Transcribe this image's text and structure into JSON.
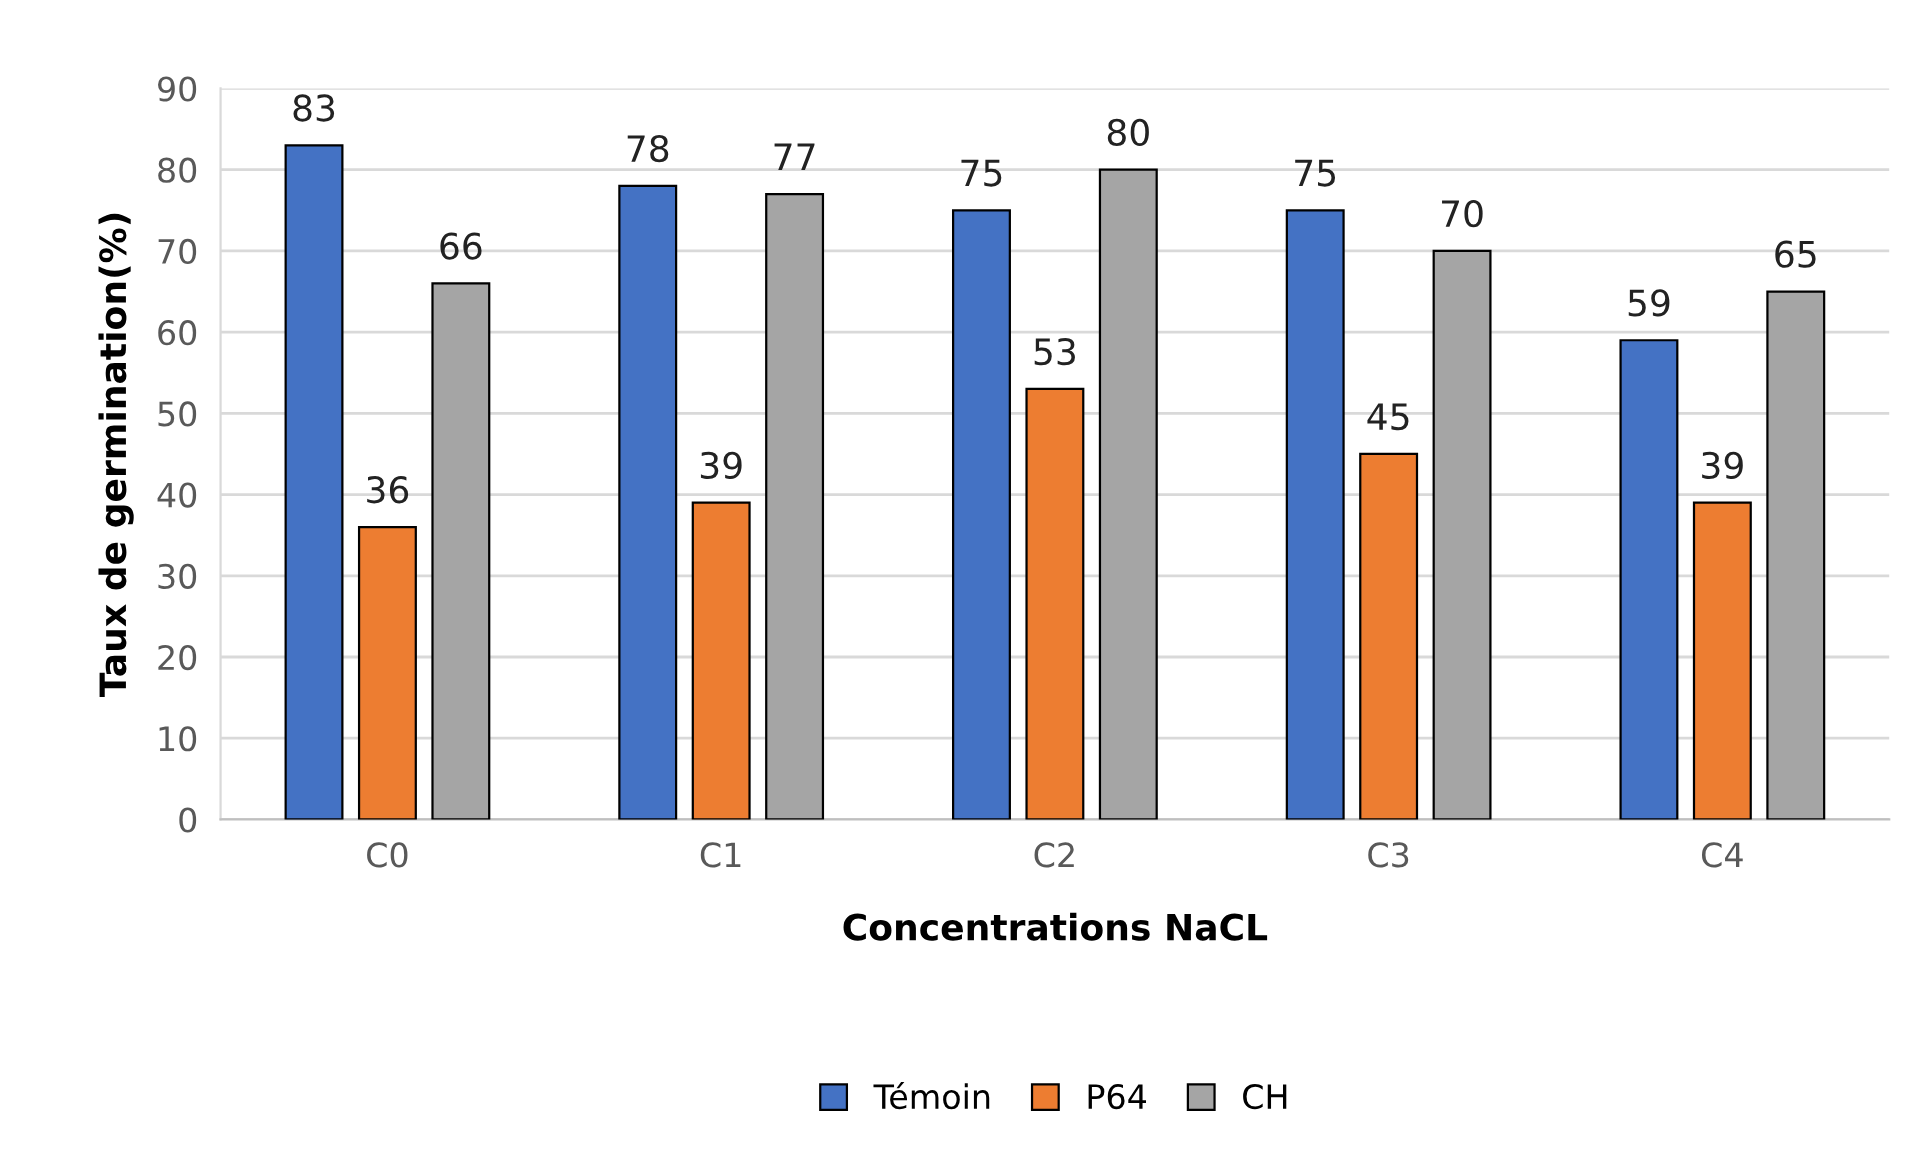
{
  "chart_data": {
    "type": "bar",
    "xlabel": "Concentrations NaCL",
    "ylabel": "Taux de germination(%)",
    "categories": [
      "C0",
      "C1",
      "C2",
      "C3",
      "C4"
    ],
    "series": [
      {
        "name": "Témoin",
        "color": "#4472c4",
        "values": [
          83,
          78,
          75,
          75,
          59
        ]
      },
      {
        "name": "P64",
        "color": "#ed7d31",
        "values": [
          36,
          39,
          53,
          45,
          39
        ]
      },
      {
        "name": "CH",
        "color": "#a5a5a5",
        "values": [
          66,
          77,
          80,
          70,
          65
        ]
      }
    ],
    "ylim": [
      0,
      90
    ],
    "yticks": [
      0,
      10,
      20,
      30,
      40,
      50,
      60,
      70,
      80,
      90
    ],
    "grid": "y",
    "legend": "bottom",
    "data_labels": true
  }
}
